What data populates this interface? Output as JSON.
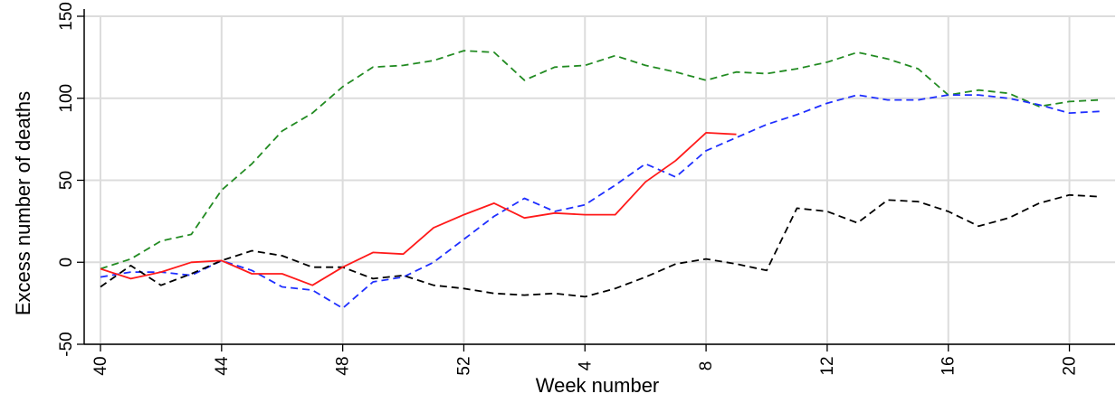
{
  "chart_data": {
    "type": "line",
    "title": "",
    "xlabel": "Week number",
    "ylabel": "Excess number of deaths",
    "ylim": [
      -50,
      150
    ],
    "yticks": [
      -50,
      0,
      50,
      100,
      150
    ],
    "x_categories": [
      "40",
      "41",
      "42",
      "43",
      "44",
      "45",
      "46",
      "47",
      "48",
      "49",
      "50",
      "51",
      "52",
      "53",
      "1",
      "2",
      "3",
      "4",
      "5",
      "6",
      "7",
      "8",
      "9",
      "10",
      "11",
      "12",
      "13",
      "14",
      "15",
      "16",
      "17",
      "18",
      "19",
      "20"
    ],
    "xtick_labels": [
      "40",
      "44",
      "48",
      "52",
      "4",
      "8",
      "12",
      "16",
      "20"
    ],
    "grid": true,
    "legend": "none",
    "series": [
      {
        "color": "#228b22",
        "style": "dashed",
        "values": [
          -4,
          2,
          13,
          17,
          44,
          60,
          80,
          91,
          107,
          119,
          120,
          123,
          129,
          128,
          111,
          119,
          120,
          126,
          120,
          116,
          111,
          116,
          115,
          118,
          122,
          128,
          124,
          118,
          102,
          105,
          103,
          95,
          98,
          99
        ]
      },
      {
        "color": "#1f2fff",
        "style": "dashed",
        "values": [
          -9,
          -6,
          -6,
          -8,
          1,
          -5,
          -15,
          -17,
          -28,
          -12,
          -9,
          0,
          14,
          28,
          39,
          31,
          35,
          47,
          60,
          52,
          68,
          76,
          84,
          90,
          97,
          102,
          99,
          99,
          102,
          102,
          100,
          96,
          91,
          92
        ]
      },
      {
        "color": "#000000",
        "style": "dashed",
        "values": [
          -15,
          -2,
          -14,
          -7,
          1,
          7,
          4,
          -3,
          -3,
          -10,
          -8,
          -14,
          -16,
          -19,
          -20,
          -19,
          -21,
          -16,
          -9,
          -1,
          2,
          -1,
          -5,
          33,
          31,
          24,
          38,
          37,
          31,
          22,
          27,
          36,
          41,
          40
        ]
      },
      {
        "color": "#ff1a1a",
        "style": "solid",
        "values": [
          -4,
          -10,
          -6,
          0,
          1,
          -7,
          -7,
          -14,
          -3,
          6,
          5,
          21,
          29,
          36,
          27,
          30,
          29,
          29,
          49,
          62,
          79,
          78,
          null,
          null,
          null,
          null,
          null,
          null,
          null,
          null,
          null,
          null,
          null,
          null
        ]
      }
    ]
  }
}
